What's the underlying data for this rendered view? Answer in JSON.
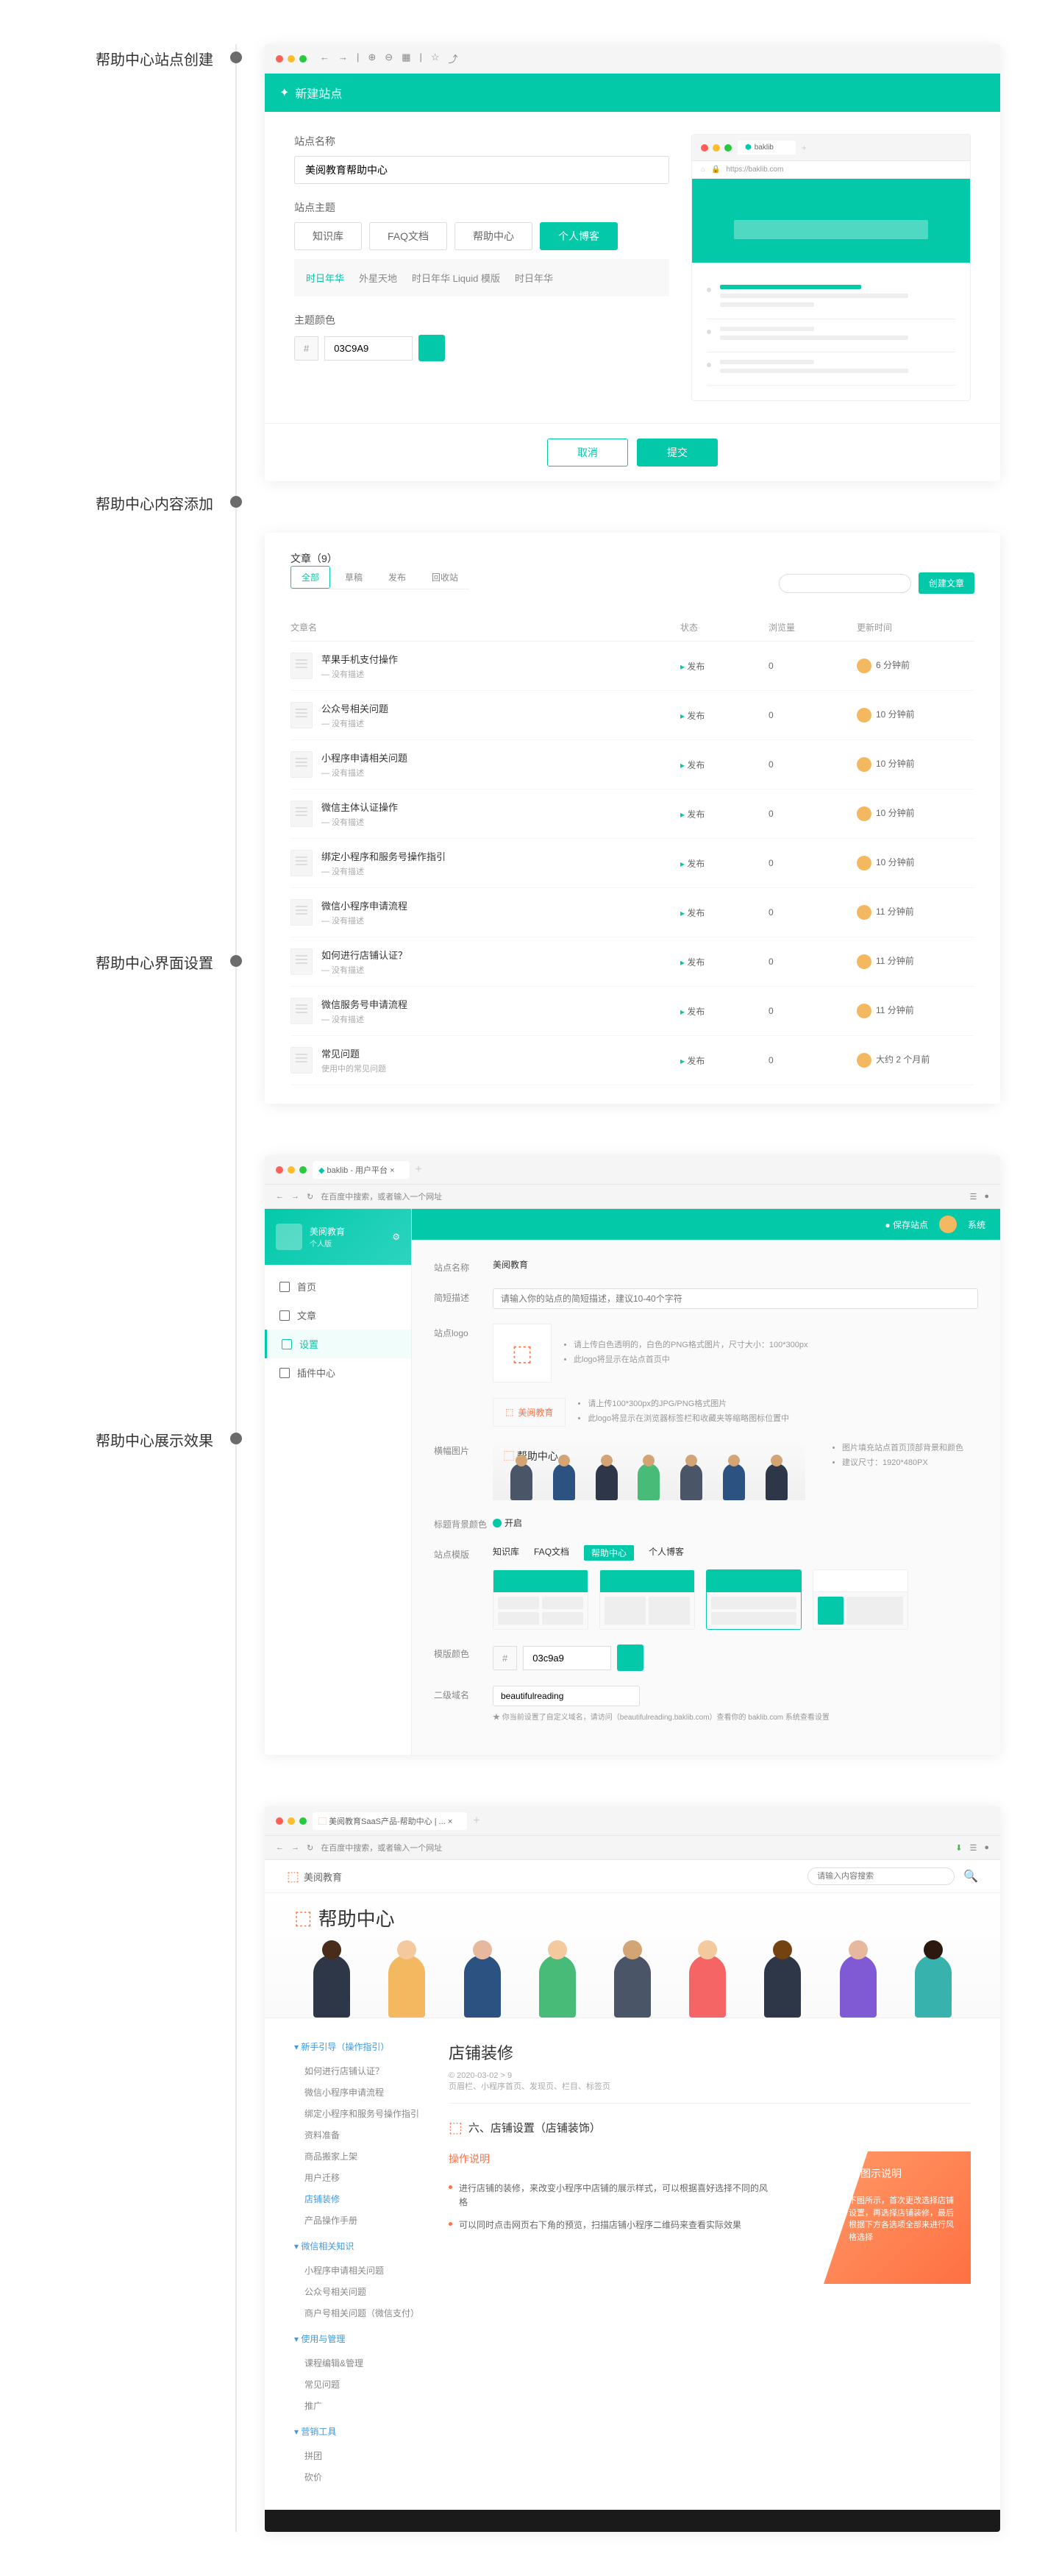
{
  "steps": {
    "s1": "帮助中心站点创建",
    "s2": "帮助中心内容添加",
    "s3": "帮助中心界面设置",
    "s4": "帮助中心展示效果"
  },
  "panel1": {
    "header": "新建站点",
    "site_name_label": "站点名称",
    "site_name_value": "美阅教育帮助中心",
    "site_theme_label": "站点主题",
    "themes": {
      "t1": "知识库",
      "t2": "FAQ文档",
      "t3": "帮助中心",
      "t4": "个人博客"
    },
    "subtabs": {
      "s1": "时日年华",
      "s2": "外星天地",
      "s3": "时日年华 Liquid 模版",
      "s4": "时日年华"
    },
    "color_label": "主题颜色",
    "color_prefix": "#",
    "color_value": "03C9A9",
    "preview_tab": "baklib",
    "preview_url": "https://baklib.com",
    "cancel": "取消",
    "submit": "提交"
  },
  "panel2": {
    "title": "文章（9）",
    "tabs": {
      "t1": "全部",
      "t2": "草稿",
      "t3": "发布",
      "t4": "回收站"
    },
    "create_btn": "创建文章",
    "th": {
      "name": "文章名",
      "status": "状态",
      "views": "浏览量",
      "time": "更新时间"
    },
    "rows": [
      {
        "name": "苹果手机支付操作",
        "sub": "— 没有描述",
        "status": "发布",
        "views": "0",
        "time": "6 分钟前"
      },
      {
        "name": "公众号相关问题",
        "sub": "— 没有描述",
        "status": "发布",
        "views": "0",
        "time": "10 分钟前"
      },
      {
        "name": "小程序申请相关问题",
        "sub": "— 没有描述",
        "status": "发布",
        "views": "0",
        "time": "10 分钟前"
      },
      {
        "name": "微信主体认证操作",
        "sub": "— 没有描述",
        "status": "发布",
        "views": "0",
        "time": "10 分钟前"
      },
      {
        "name": "绑定小程序和服务号操作指引",
        "sub": "— 没有描述",
        "status": "发布",
        "views": "0",
        "time": "10 分钟前"
      },
      {
        "name": "微信小程序申请流程",
        "sub": "— 没有描述",
        "status": "发布",
        "views": "0",
        "time": "11 分钟前"
      },
      {
        "name": "如何进行店铺认证？",
        "sub": "— 没有描述",
        "status": "发布",
        "views": "0",
        "time": "11 分钟前"
      },
      {
        "name": "微信服务号申请流程",
        "sub": "— 没有描述",
        "status": "发布",
        "views": "0",
        "time": "11 分钟前"
      },
      {
        "name": "常见问题",
        "sub": "使用中的常见问题",
        "status": "发布",
        "views": "0",
        "time": "大约 2 个月前"
      }
    ]
  },
  "panel3": {
    "tab_title": "baklib - 用户平台",
    "addr_text": "在百度中搜索，或者输入一个网址",
    "user_name": "美阅教育",
    "user_sub": "个人版",
    "nav": {
      "n1": "首页",
      "n2": "文章",
      "n3": "设置",
      "n4": "插件中心"
    },
    "topbar_save": "保存站点",
    "topbar_user": "系统",
    "fields": {
      "name_label": "站点名称",
      "name_val": "美阅教育",
      "desc_label": "简短描述",
      "desc_placeholder": "请输入你的站点的简短描述，建议10-40个字符",
      "logo_label": "站点logo",
      "logo_hint1": "请上传白色透明的，白色的PNG格式图片，尺寸大小：100*300px",
      "logo_hint2": "此logo将显示在站点首页中",
      "logo2_text": "美阅教育",
      "logo2_hint1": "请上传100*300px的JPG/PNG格式图片",
      "logo2_hint2": "此logo将显示在浏览器标签栏和收藏夹等缩略图标位置中",
      "banner_label": "横幅图片",
      "banner_text": "帮助中心",
      "banner_hint1": "图片填充站点首页顶部背景和颜色",
      "banner_hint2": "建议尺寸：1920*480PX",
      "nav_color_label": "标题背景颜色",
      "nav_on": "开启",
      "theme_label": "站点模版",
      "theme_tabs": {
        "t1": "知识库",
        "t2": "FAQ文档",
        "t3": "帮助中心",
        "t4": "个人博客"
      },
      "color_label": "模版颜色",
      "color_prefix": "#",
      "color_value": "03c9a9",
      "domain_label": "二级域名",
      "domain_val": "beautifulreading",
      "domain_note": "★ 你当前设置了自定义域名，请访问（beautifulreading.baklib.com）查看你的                        baklib.com        系统查看设置"
    }
  },
  "panel4": {
    "tab_title": "美阅教育SaaS产品-帮助中心 | ...",
    "addr_text": "在百度中搜索，或者输入一个网址",
    "brand": "美阅教育",
    "search_placeholder": "请输入内容搜索",
    "hero_title": "帮助中心",
    "side": {
      "g1": "新手引导（操作指引）",
      "g1_items": [
        "如何进行店铺认证？",
        "微信小程序申请流程",
        "绑定小程序和服务号操作指引",
        "资料准备",
        "商品搬家上架",
        "用户迁移",
        "店铺装修",
        "产品操作手册"
      ],
      "g2": "微信相关知识",
      "g2_items": [
        "小程序申请相关问题",
        "公众号相关问题",
        "商户号相关问题（微信支付）"
      ],
      "g3": "使用与管理",
      "g3_items": [
        "课程编辑&管理",
        "常见问题",
        "推广"
      ],
      "g4": "营销工具",
      "g4_items": [
        "拼团",
        "砍价"
      ]
    },
    "article": {
      "title": "店铺装修",
      "meta": "© 2020-03-02    > 9",
      "breadcrumb": "页眉栏、小程序首页、发现页、栏目、标签页",
      "section_title": "六、店铺设置（店铺装饰）",
      "col1_title": "操作说明",
      "col1_items": [
        "进行店铺的装修，来改变小程序中店铺的展示样式，可以根据喜好选择不同的风格",
        "可以同时点击网页右下角的预览，扫描店铺小程序二维码来查看实际效果"
      ],
      "col2_title": "图示说明",
      "col2_items": [
        "下图所示，首次更改选择店铺设置，再选择店铺装修，最后根据下方各选项全部来进行风格选择"
      ]
    }
  }
}
